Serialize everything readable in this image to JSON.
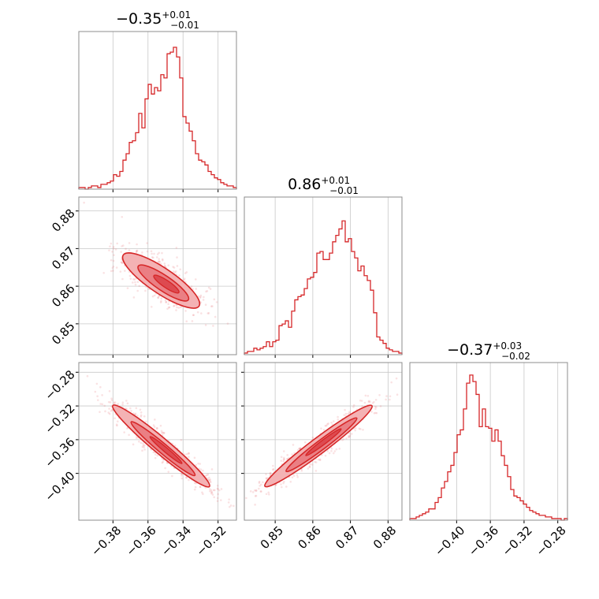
{
  "chart_data": {
    "type": "corner",
    "color": "#d62728",
    "grid": true,
    "titles": [
      {
        "main": "−0.35",
        "upper": "+0.01",
        "lower": "−0.01"
      },
      {
        "main": "0.86",
        "upper": "+0.01",
        "lower": "−0.01"
      },
      {
        "main": "−0.37",
        "upper": "+0.03",
        "lower": "−0.02"
      }
    ],
    "parameters": [
      {
        "range": [
          -0.3995,
          -0.3095
        ],
        "ticks": [
          -0.38,
          -0.36,
          -0.34,
          -0.32
        ],
        "tick_labels": [
          "−0.38",
          "−0.36",
          "−0.34",
          "−0.32"
        ]
      },
      {
        "range": [
          0.8418,
          0.8837
        ],
        "ticks": [
          0.85,
          0.86,
          0.87,
          0.88
        ],
        "tick_labels": [
          "0.85",
          "0.86",
          "0.87",
          "0.88"
        ]
      },
      {
        "range": [
          -0.4555,
          -0.2685
        ],
        "ticks": [
          -0.4,
          -0.36,
          -0.32,
          -0.28
        ],
        "tick_labels": [
          "−0.40",
          "−0.36",
          "−0.32",
          "−0.28"
        ]
      }
    ],
    "diag_hist": [
      [
        0.01,
        0.01,
        0.0,
        0.01,
        0.02,
        0.02,
        0.01,
        0.03,
        0.03,
        0.04,
        0.05,
        0.09,
        0.08,
        0.11,
        0.18,
        0.22,
        0.29,
        0.3,
        0.35,
        0.47,
        0.38,
        0.56,
        0.65,
        0.59,
        0.63,
        0.61,
        0.71,
        0.69,
        0.84,
        0.85,
        0.88,
        0.82,
        0.69,
        0.45,
        0.41,
        0.36,
        0.3,
        0.22,
        0.18,
        0.17,
        0.15,
        0.11,
        0.09,
        0.07,
        0.06,
        0.04,
        0.03,
        0.02,
        0.02,
        0.01
      ],
      [
        0.01,
        0.02,
        0.02,
        0.04,
        0.03,
        0.04,
        0.05,
        0.08,
        0.05,
        0.08,
        0.09,
        0.18,
        0.19,
        0.21,
        0.17,
        0.27,
        0.34,
        0.36,
        0.37,
        0.41,
        0.47,
        0.48,
        0.51,
        0.63,
        0.64,
        0.59,
        0.59,
        0.63,
        0.7,
        0.74,
        0.78,
        0.83,
        0.7,
        0.72,
        0.64,
        0.6,
        0.52,
        0.55,
        0.49,
        0.46,
        0.4,
        0.26,
        0.11,
        0.09,
        0.07,
        0.04,
        0.03,
        0.02,
        0.02,
        0.01
      ],
      [
        0.01,
        0.01,
        0.02,
        0.03,
        0.04,
        0.05,
        0.07,
        0.07,
        0.11,
        0.14,
        0.2,
        0.24,
        0.3,
        0.34,
        0.42,
        0.53,
        0.56,
        0.69,
        0.85,
        0.9,
        0.86,
        0.78,
        0.58,
        0.69,
        0.58,
        0.57,
        0.49,
        0.56,
        0.49,
        0.4,
        0.34,
        0.27,
        0.19,
        0.15,
        0.14,
        0.12,
        0.1,
        0.08,
        0.06,
        0.05,
        0.04,
        0.03,
        0.03,
        0.02,
        0.02,
        0.01,
        0.01,
        0.01,
        0.0,
        0.01
      ]
    ],
    "pairs": [
      {
        "x_param": 0,
        "y_param": 1
      },
      {
        "x_param": 0,
        "y_param": 2
      },
      {
        "x_param": 1,
        "y_param": 2
      }
    ]
  }
}
